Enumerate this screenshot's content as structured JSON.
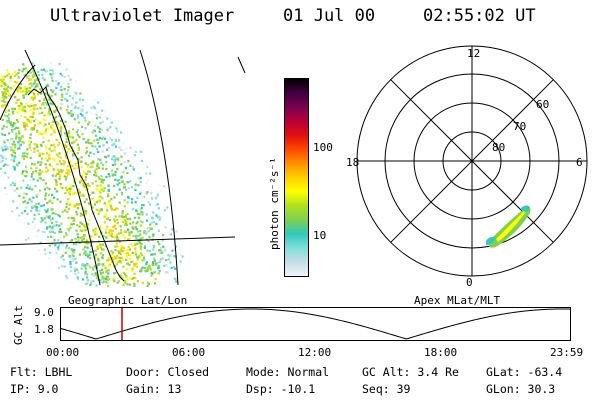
{
  "header": {
    "instrument": "Ultraviolet Imager",
    "date": "01 Jul 00",
    "time": "02:55:02 UT"
  },
  "left_panel": {
    "caption": "Geographic Lat/Lon"
  },
  "colorbar": {
    "unit_label": "photon cm⁻²s⁻¹",
    "ticks": [
      "100",
      "10"
    ],
    "colors": [
      "#eef4f8",
      "#c8dce6",
      "#7fe0d8",
      "#30c8c0",
      "#7fd050",
      "#b0e020",
      "#ffff00",
      "#ffd000",
      "#ff9000",
      "#ff4800",
      "#e01010",
      "#b8003a",
      "#7a0050",
      "#400040",
      "#000000"
    ]
  },
  "polar_plot": {
    "caption": "Apex MLat/MLT",
    "mlt_labels": [
      "12",
      "18",
      "6",
      "0"
    ],
    "lat_labels": [
      "60",
      "70",
      "80"
    ]
  },
  "timeline": {
    "ylabel": "GC Alt",
    "yticks": [
      "9.0",
      "1.8"
    ],
    "xticks": [
      "00:00",
      "06:00",
      "12:00",
      "18:00",
      "23:59"
    ],
    "marker_time": "02:55",
    "marker_color": "#cc0000"
  },
  "info": {
    "rows": [
      [
        "Flt: LBHL",
        "Door: Closed",
        "Mode: Normal",
        "GC Alt: 3.4 Re",
        "GLat: -63.4"
      ],
      [
        "IP:  9.0",
        "Gain: 13",
        "Dsp:  -10.1",
        "Seq: 39",
        "GLon:  30.3"
      ]
    ]
  }
}
